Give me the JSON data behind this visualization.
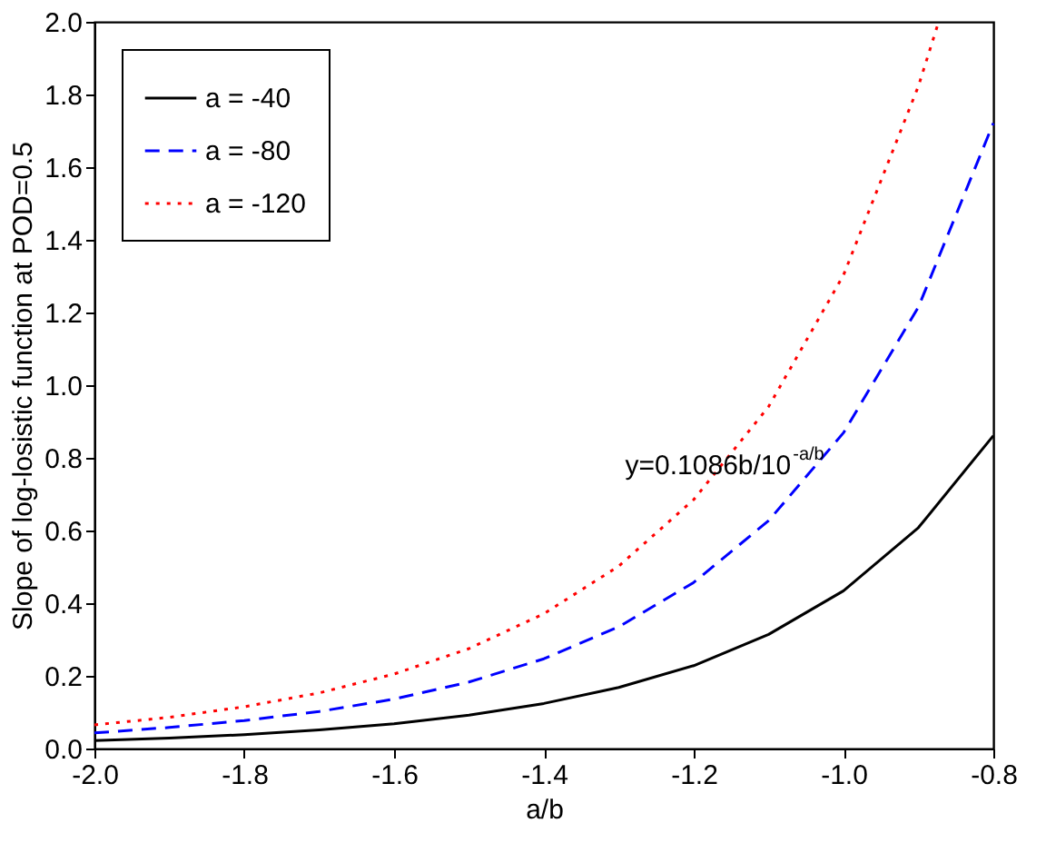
{
  "chart_data": {
    "type": "line",
    "xlabel": "a/b",
    "ylabel": "Slope of log-losistic function at POD=0.5",
    "xlim": [
      -2.0,
      -0.8
    ],
    "xticks": [
      {
        "value": -2.0,
        "label": "-2.0"
      },
      -1.8,
      -1.6,
      -1.4,
      -1.2,
      {
        "value": -1.0,
        "label": "-1.0"
      },
      -0.8
    ],
    "ylim": [
      0.0,
      2.0
    ],
    "yticks": [
      {
        "value": 0.0,
        "label": "0.0"
      },
      0.2,
      0.4,
      0.6,
      0.8,
      {
        "value": 1.0,
        "label": "1.0"
      },
      1.2,
      1.4,
      1.6,
      1.8,
      {
        "value": 2.0,
        "label": "2.0"
      }
    ],
    "grid": false,
    "legend": "top left",
    "marker": "none",
    "annotations": [
      "y=0.1086b/10$^{-a/b}$"
    ],
    "series": [
      {
        "name": "a = -40",
        "color": "#000000",
        "line_style": "solid",
        "x": [
          -2.0,
          -1.9,
          -1.8,
          -1.7,
          -1.6,
          -1.5,
          -1.4,
          -1.3,
          -1.2,
          -1.1,
          -1.0,
          -0.9,
          -0.8
        ],
        "values": [
          0.022,
          0.029,
          0.038,
          0.051,
          0.068,
          0.092,
          0.124,
          0.168,
          0.228,
          0.314,
          0.434,
          0.608,
          0.861
        ]
      },
      {
        "name": "a = -80",
        "color": "#0000ff",
        "line_style": "dashed",
        "x": [
          -2.0,
          -1.9,
          -1.8,
          -1.7,
          -1.6,
          -1.5,
          -1.4,
          -1.3,
          -1.2,
          -1.1,
          -1.0,
          -0.9,
          -0.8
        ],
        "values": [
          0.043,
          0.058,
          0.077,
          0.102,
          0.136,
          0.183,
          0.247,
          0.335,
          0.457,
          0.627,
          0.869,
          1.215,
          1.721
        ]
      },
      {
        "name": "a = -120",
        "color": "#ff0000",
        "line_style": "dotted",
        "x": [
          -2.0,
          -1.9,
          -1.8,
          -1.7,
          -1.6,
          -1.5,
          -1.4,
          -1.3,
          -1.2,
          -1.1,
          -1.0,
          -0.9,
          -0.873
        ],
        "values": [
          0.065,
          0.086,
          0.115,
          0.153,
          0.205,
          0.275,
          0.371,
          0.502,
          0.685,
          0.941,
          1.303,
          1.823,
          2.0
        ]
      }
    ]
  }
}
